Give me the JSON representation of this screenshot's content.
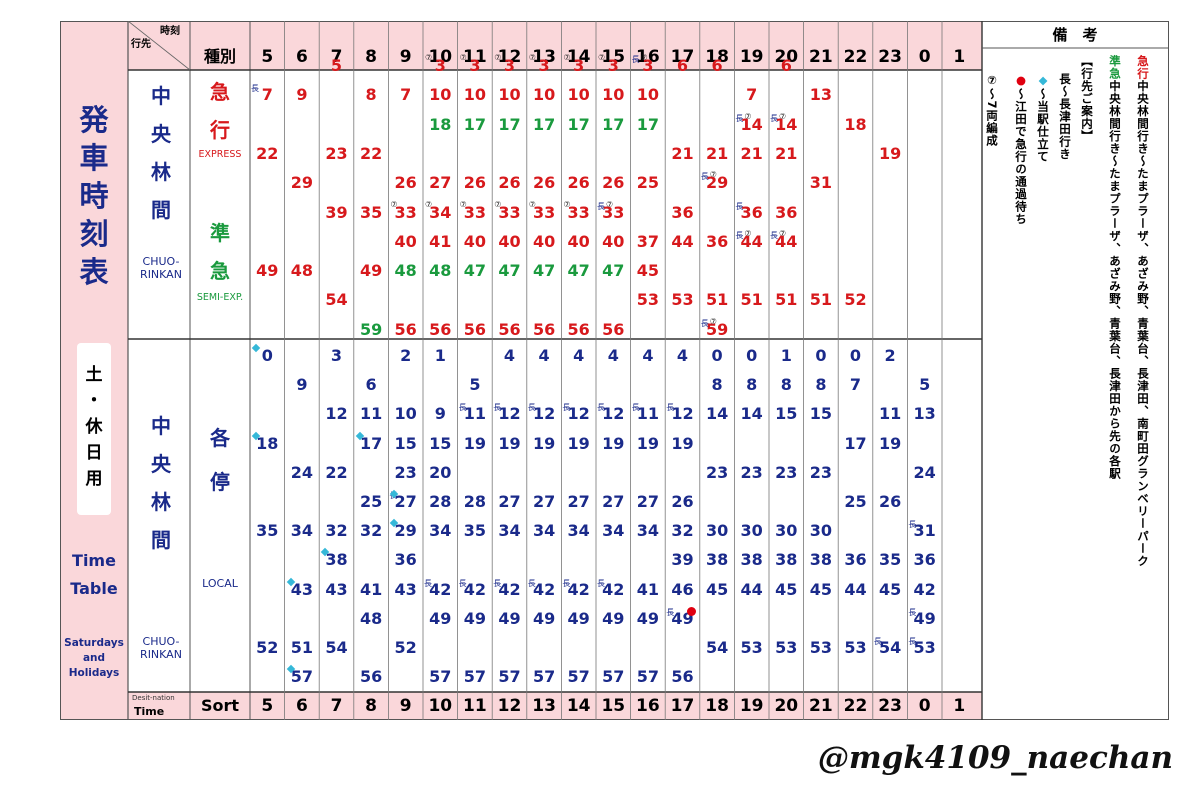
{
  "title_lines": [
    "発",
    "車",
    "時",
    "刻",
    "表"
  ],
  "day_type_lines": [
    "土",
    "・",
    "休",
    "日",
    "用"
  ],
  "title_en_lines": [
    "Time",
    "Table"
  ],
  "day_type_en_lines": [
    "Saturdays",
    "and",
    "Holidays"
  ],
  "corner": {
    "top_right": "時刻",
    "bottom_left": "行先",
    "footer_top": "Desit-nation",
    "footer_bottom": "Time"
  },
  "type_header": "種別",
  "footer_sort": "Sort",
  "remarks_header": "備　考",
  "hours": [
    "5",
    "6",
    "7",
    "8",
    "9",
    "10",
    "11",
    "12",
    "13",
    "14",
    "15",
    "16",
    "17",
    "18",
    "19",
    "20",
    "21",
    "22",
    "23",
    "0",
    "1"
  ],
  "upper": {
    "dest_lines": [
      "中",
      "央",
      "林",
      "間"
    ],
    "dest_en_lines": [
      "CHUO-",
      "RINKAN"
    ],
    "express_lines": [
      "急",
      "行"
    ],
    "express_en": "EXPRESS",
    "semi_lines": [
      "準",
      "急"
    ],
    "semi_en": "SEMI-EXP."
  },
  "lower": {
    "dest_lines": [
      "中",
      "央",
      "林",
      "間"
    ],
    "dest_en_lines": [
      "CHUO-",
      "RINKAN"
    ],
    "local_lines": [
      "各",
      "停"
    ],
    "local_en": "LOCAL"
  },
  "upper_times": [
    [
      {
        "m": "7",
        "c": "red",
        "r": 1,
        "long": true
      },
      {
        "m": "22",
        "c": "red",
        "r": 3
      },
      {
        "m": "49",
        "c": "red",
        "r": 7
      }
    ],
    [
      {
        "m": "9",
        "c": "red",
        "r": 1
      },
      {
        "m": "29",
        "c": "red",
        "r": 4
      },
      {
        "m": "48",
        "c": "red",
        "r": 7
      }
    ],
    [
      {
        "m": "5",
        "c": "red",
        "r": 0
      },
      {
        "m": "23",
        "c": "red",
        "r": 3
      },
      {
        "m": "39",
        "c": "red",
        "r": 5
      },
      {
        "m": "54",
        "c": "red",
        "r": 8
      }
    ],
    [
      {
        "m": "8",
        "c": "red",
        "r": 1
      },
      {
        "m": "22",
        "c": "red",
        "r": 3
      },
      {
        "m": "35",
        "c": "red",
        "r": 5
      },
      {
        "m": "49",
        "c": "red",
        "r": 7
      },
      {
        "m": "59",
        "c": "green",
        "r": 9
      }
    ],
    [
      {
        "m": "7",
        "c": "red",
        "r": 1
      },
      {
        "m": "26",
        "c": "red",
        "r": 4
      },
      {
        "m": "33",
        "c": "red",
        "r": 5,
        "seven": true
      },
      {
        "m": "40",
        "c": "red",
        "r": 6
      },
      {
        "m": "48",
        "c": "green",
        "r": 7
      },
      {
        "m": "56",
        "c": "red",
        "r": 9
      }
    ],
    [
      {
        "m": "3",
        "c": "red",
        "r": 0,
        "seven": true
      },
      {
        "m": "10",
        "c": "red",
        "r": 1
      },
      {
        "m": "18",
        "c": "green",
        "r": 2
      },
      {
        "m": "27",
        "c": "red",
        "r": 4
      },
      {
        "m": "34",
        "c": "red",
        "r": 5,
        "seven": true
      },
      {
        "m": "41",
        "c": "red",
        "r": 6
      },
      {
        "m": "48",
        "c": "green",
        "r": 7
      },
      {
        "m": "56",
        "c": "red",
        "r": 9
      }
    ],
    [
      {
        "m": "3",
        "c": "red",
        "r": 0,
        "seven": true
      },
      {
        "m": "10",
        "c": "red",
        "r": 1
      },
      {
        "m": "17",
        "c": "green",
        "r": 2
      },
      {
        "m": "26",
        "c": "red",
        "r": 4
      },
      {
        "m": "33",
        "c": "red",
        "r": 5,
        "seven": true
      },
      {
        "m": "40",
        "c": "red",
        "r": 6
      },
      {
        "m": "47",
        "c": "green",
        "r": 7
      },
      {
        "m": "56",
        "c": "red",
        "r": 9
      }
    ],
    [
      {
        "m": "3",
        "c": "red",
        "r": 0,
        "seven": true
      },
      {
        "m": "10",
        "c": "red",
        "r": 1
      },
      {
        "m": "17",
        "c": "green",
        "r": 2
      },
      {
        "m": "26",
        "c": "red",
        "r": 4
      },
      {
        "m": "33",
        "c": "red",
        "r": 5,
        "seven": true
      },
      {
        "m": "40",
        "c": "red",
        "r": 6
      },
      {
        "m": "47",
        "c": "green",
        "r": 7
      },
      {
        "m": "56",
        "c": "red",
        "r": 9
      }
    ],
    [
      {
        "m": "3",
        "c": "red",
        "r": 0,
        "seven": true
      },
      {
        "m": "10",
        "c": "red",
        "r": 1
      },
      {
        "m": "17",
        "c": "green",
        "r": 2
      },
      {
        "m": "26",
        "c": "red",
        "r": 4
      },
      {
        "m": "33",
        "c": "red",
        "r": 5,
        "seven": true
      },
      {
        "m": "40",
        "c": "red",
        "r": 6
      },
      {
        "m": "47",
        "c": "green",
        "r": 7
      },
      {
        "m": "56",
        "c": "red",
        "r": 9
      }
    ],
    [
      {
        "m": "3",
        "c": "red",
        "r": 0,
        "seven": true
      },
      {
        "m": "10",
        "c": "red",
        "r": 1
      },
      {
        "m": "17",
        "c": "green",
        "r": 2
      },
      {
        "m": "26",
        "c": "red",
        "r": 4
      },
      {
        "m": "33",
        "c": "red",
        "r": 5,
        "seven": true
      },
      {
        "m": "40",
        "c": "red",
        "r": 6
      },
      {
        "m": "47",
        "c": "green",
        "r": 7
      },
      {
        "m": "56",
        "c": "red",
        "r": 9
      }
    ],
    [
      {
        "m": "3",
        "c": "red",
        "r": 0,
        "seven": true
      },
      {
        "m": "10",
        "c": "red",
        "r": 1
      },
      {
        "m": "17",
        "c": "green",
        "r": 2
      },
      {
        "m": "26",
        "c": "red",
        "r": 4
      },
      {
        "m": "33",
        "c": "red",
        "r": 5,
        "long": true,
        "seven": true
      },
      {
        "m": "40",
        "c": "red",
        "r": 6
      },
      {
        "m": "47",
        "c": "green",
        "r": 7
      },
      {
        "m": "56",
        "c": "red",
        "r": 9
      }
    ],
    [
      {
        "m": "3",
        "c": "red",
        "r": 0,
        "long": true,
        "seven": true
      },
      {
        "m": "10",
        "c": "red",
        "r": 1
      },
      {
        "m": "17",
        "c": "green",
        "r": 2
      },
      {
        "m": "25",
        "c": "red",
        "r": 4
      },
      {
        "m": "37",
        "c": "red",
        "r": 6
      },
      {
        "m": "45",
        "c": "red",
        "r": 7
      },
      {
        "m": "53",
        "c": "red",
        "r": 8
      }
    ],
    [
      {
        "m": "6",
        "c": "red",
        "r": 0
      },
      {
        "m": "21",
        "c": "red",
        "r": 3
      },
      {
        "m": "36",
        "c": "red",
        "r": 5
      },
      {
        "m": "44",
        "c": "red",
        "r": 6
      },
      {
        "m": "53",
        "c": "red",
        "r": 8
      }
    ],
    [
      {
        "m": "6",
        "c": "red",
        "r": 0
      },
      {
        "m": "21",
        "c": "red",
        "r": 3
      },
      {
        "m": "29",
        "c": "red",
        "r": 4,
        "long": true,
        "seven": true
      },
      {
        "m": "36",
        "c": "red",
        "r": 6
      },
      {
        "m": "51",
        "c": "red",
        "r": 8
      },
      {
        "m": "59",
        "c": "red",
        "r": 9,
        "long": true,
        "seven": true
      }
    ],
    [
      {
        "m": "7",
        "c": "red",
        "r": 1
      },
      {
        "m": "14",
        "c": "red",
        "r": 2,
        "long": true,
        "seven": true
      },
      {
        "m": "21",
        "c": "red",
        "r": 3
      },
      {
        "m": "36",
        "c": "red",
        "r": 5,
        "long": true
      },
      {
        "m": "44",
        "c": "red",
        "r": 6,
        "long": true,
        "seven": true
      },
      {
        "m": "51",
        "c": "red",
        "r": 8
      }
    ],
    [
      {
        "m": "6",
        "c": "red",
        "r": 0
      },
      {
        "m": "14",
        "c": "red",
        "r": 2,
        "long": true,
        "seven": true
      },
      {
        "m": "21",
        "c": "red",
        "r": 3
      },
      {
        "m": "36",
        "c": "red",
        "r": 5
      },
      {
        "m": "44",
        "c": "red",
        "r": 6,
        "long": true,
        "seven": true
      },
      {
        "m": "51",
        "c": "red",
        "r": 8
      }
    ],
    [
      {
        "m": "13",
        "c": "red",
        "r": 1
      },
      {
        "m": "31",
        "c": "red",
        "r": 4
      },
      {
        "m": "51",
        "c": "red",
        "r": 8
      }
    ],
    [
      {
        "m": "18",
        "c": "red",
        "r": 2
      },
      {
        "m": "52",
        "c": "red",
        "r": 8
      }
    ],
    [
      {
        "m": "19",
        "c": "red",
        "r": 3
      }
    ],
    [],
    []
  ],
  "lower_times": [
    [
      {
        "m": "0",
        "r": 0,
        "dia": true
      },
      {
        "m": "18",
        "r": 3,
        "dia": true
      },
      {
        "m": "35",
        "r": 6
      },
      {
        "m": "52",
        "r": 10
      }
    ],
    [
      {
        "m": "9",
        "r": 1
      },
      {
        "m": "24",
        "r": 4
      },
      {
        "m": "34",
        "r": 6
      },
      {
        "m": "43",
        "r": 8,
        "dia": true
      },
      {
        "m": "51",
        "r": 10
      },
      {
        "m": "57",
        "r": 11,
        "dia": true
      }
    ],
    [
      {
        "m": "3",
        "r": 0
      },
      {
        "m": "12",
        "r": 2
      },
      {
        "m": "22",
        "r": 4
      },
      {
        "m": "32",
        "r": 6
      },
      {
        "m": "38",
        "r": 7,
        "dia": true
      },
      {
        "m": "43",
        "r": 8
      },
      {
        "m": "54",
        "r": 10
      }
    ],
    [
      {
        "m": "6",
        "r": 1
      },
      {
        "m": "11",
        "r": 2
      },
      {
        "m": "17",
        "r": 3,
        "dia": true
      },
      {
        "m": "25",
        "r": 5
      },
      {
        "m": "32",
        "r": 6
      },
      {
        "m": "41",
        "r": 8
      },
      {
        "m": "48",
        "r": 9
      },
      {
        "m": "56",
        "r": 11
      }
    ],
    [
      {
        "m": "2",
        "r": 0
      },
      {
        "m": "10",
        "r": 2
      },
      {
        "m": "15",
        "r": 3
      },
      {
        "m": "23",
        "r": 4
      },
      {
        "m": "27",
        "r": 5,
        "long": true,
        "dia": true
      },
      {
        "m": "29",
        "r": 6,
        "dia": true
      },
      {
        "m": "36",
        "r": 7
      },
      {
        "m": "43",
        "r": 8
      },
      {
        "m": "52",
        "r": 10
      }
    ],
    [
      {
        "m": "1",
        "r": 0
      },
      {
        "m": "9",
        "r": 2
      },
      {
        "m": "15",
        "r": 3
      },
      {
        "m": "20",
        "r": 4
      },
      {
        "m": "28",
        "r": 5
      },
      {
        "m": "34",
        "r": 6
      },
      {
        "m": "42",
        "r": 8,
        "long": true
      },
      {
        "m": "49",
        "r": 9
      },
      {
        "m": "57",
        "r": 11
      }
    ],
    [
      {
        "m": "5",
        "r": 1
      },
      {
        "m": "11",
        "r": 2,
        "long": true
      },
      {
        "m": "19",
        "r": 3
      },
      {
        "m": "28",
        "r": 5
      },
      {
        "m": "35",
        "r": 6
      },
      {
        "m": "42",
        "r": 8,
        "long": true
      },
      {
        "m": "49",
        "r": 9
      },
      {
        "m": "57",
        "r": 11
      }
    ],
    [
      {
        "m": "4",
        "r": 0
      },
      {
        "m": "12",
        "r": 2,
        "long": true
      },
      {
        "m": "19",
        "r": 3
      },
      {
        "m": "27",
        "r": 5
      },
      {
        "m": "34",
        "r": 6
      },
      {
        "m": "42",
        "r": 8,
        "long": true
      },
      {
        "m": "49",
        "r": 9
      },
      {
        "m": "57",
        "r": 11
      }
    ],
    [
      {
        "m": "4",
        "r": 0
      },
      {
        "m": "12",
        "r": 2,
        "long": true
      },
      {
        "m": "19",
        "r": 3
      },
      {
        "m": "27",
        "r": 5
      },
      {
        "m": "34",
        "r": 6
      },
      {
        "m": "42",
        "r": 8,
        "long": true
      },
      {
        "m": "49",
        "r": 9
      },
      {
        "m": "57",
        "r": 11
      }
    ],
    [
      {
        "m": "4",
        "r": 0
      },
      {
        "m": "12",
        "r": 2,
        "long": true
      },
      {
        "m": "19",
        "r": 3
      },
      {
        "m": "27",
        "r": 5
      },
      {
        "m": "34",
        "r": 6
      },
      {
        "m": "42",
        "r": 8,
        "long": true
      },
      {
        "m": "49",
        "r": 9
      },
      {
        "m": "57",
        "r": 11
      }
    ],
    [
      {
        "m": "4",
        "r": 0
      },
      {
        "m": "12",
        "r": 2,
        "long": true
      },
      {
        "m": "19",
        "r": 3
      },
      {
        "m": "27",
        "r": 5
      },
      {
        "m": "34",
        "r": 6
      },
      {
        "m": "42",
        "r": 8,
        "long": true
      },
      {
        "m": "49",
        "r": 9
      },
      {
        "m": "57",
        "r": 11
      }
    ],
    [
      {
        "m": "4",
        "r": 0
      },
      {
        "m": "11",
        "r": 2,
        "long": true
      },
      {
        "m": "19",
        "r": 3
      },
      {
        "m": "27",
        "r": 5
      },
      {
        "m": "34",
        "r": 6
      },
      {
        "m": "41",
        "r": 8
      },
      {
        "m": "49",
        "r": 9
      },
      {
        "m": "57",
        "r": 11
      }
    ],
    [
      {
        "m": "4",
        "r": 0
      },
      {
        "m": "12",
        "r": 2,
        "long": true
      },
      {
        "m": "19",
        "r": 3
      },
      {
        "m": "26",
        "r": 5
      },
      {
        "m": "32",
        "r": 6
      },
      {
        "m": "39",
        "r": 7
      },
      {
        "m": "46",
        "r": 8
      },
      {
        "m": "49",
        "r": 9,
        "long": true,
        "dot": true
      },
      {
        "m": "56",
        "r": 11
      }
    ],
    [
      {
        "m": "0",
        "r": 0
      },
      {
        "m": "8",
        "r": 1
      },
      {
        "m": "14",
        "r": 2
      },
      {
        "m": "23",
        "r": 4
      },
      {
        "m": "30",
        "r": 6
      },
      {
        "m": "38",
        "r": 7
      },
      {
        "m": "45",
        "r": 8
      },
      {
        "m": "54",
        "r": 10
      }
    ],
    [
      {
        "m": "0",
        "r": 0
      },
      {
        "m": "8",
        "r": 1
      },
      {
        "m": "14",
        "r": 2
      },
      {
        "m": "23",
        "r": 4
      },
      {
        "m": "30",
        "r": 6
      },
      {
        "m": "38",
        "r": 7
      },
      {
        "m": "44",
        "r": 8
      },
      {
        "m": "53",
        "r": 10
      }
    ],
    [
      {
        "m": "1",
        "r": 0
      },
      {
        "m": "8",
        "r": 1
      },
      {
        "m": "15",
        "r": 2
      },
      {
        "m": "23",
        "r": 4
      },
      {
        "m": "30",
        "r": 6
      },
      {
        "m": "38",
        "r": 7
      },
      {
        "m": "45",
        "r": 8
      },
      {
        "m": "53",
        "r": 10
      }
    ],
    [
      {
        "m": "0",
        "r": 0
      },
      {
        "m": "8",
        "r": 1
      },
      {
        "m": "15",
        "r": 2
      },
      {
        "m": "23",
        "r": 4
      },
      {
        "m": "30",
        "r": 6
      },
      {
        "m": "38",
        "r": 7
      },
      {
        "m": "45",
        "r": 8
      },
      {
        "m": "53",
        "r": 10
      }
    ],
    [
      {
        "m": "0",
        "r": 0
      },
      {
        "m": "7",
        "r": 1
      },
      {
        "m": "17",
        "r": 3
      },
      {
        "m": "25",
        "r": 5
      },
      {
        "m": "36",
        "r": 7
      },
      {
        "m": "44",
        "r": 8
      },
      {
        "m": "53",
        "r": 10
      }
    ],
    [
      {
        "m": "2",
        "r": 0
      },
      {
        "m": "11",
        "r": 2
      },
      {
        "m": "19",
        "r": 3
      },
      {
        "m": "26",
        "r": 5
      },
      {
        "m": "35",
        "r": 7
      },
      {
        "m": "45",
        "r": 8
      },
      {
        "m": "54",
        "r": 10,
        "long": true
      }
    ],
    [
      {
        "m": "5",
        "r": 1
      },
      {
        "m": "13",
        "r": 2
      },
      {
        "m": "24",
        "r": 4
      },
      {
        "m": "31",
        "r": 6,
        "long": true
      },
      {
        "m": "36",
        "r": 7
      },
      {
        "m": "42",
        "r": 8
      },
      {
        "m": "49",
        "r": 9,
        "long": true
      },
      {
        "m": "53",
        "r": 10,
        "long": true
      }
    ],
    []
  ],
  "marks": {
    "long": "長",
    "seven": "⑦"
  },
  "remarks": [
    {
      "text": "急行中央林間行き～たまプラーザ、あざみ野、青葉台、長津田、南町田グランベリーパーク",
      "lead": "急行",
      "lead_color": "#d7191c"
    },
    {
      "text": "準急中央林間行き～たまプラーザ、あざみ野、青葉台、長津田から先の各駅",
      "lead": "準急",
      "lead_color": "#1a9a3e"
    },
    {
      "text": "【行先ご案内】",
      "lead": "",
      "lead_color": "#000000"
    },
    {
      "text": "長～長津田行き",
      "lead": "",
      "lead_color": "#000000"
    },
    {
      "text": "◆～当駅仕立て",
      "lead": "◆",
      "lead_color": "#35b8d8"
    },
    {
      "text": "●～江田で急行の通過待ち",
      "lead": "●",
      "lead_color": "#e00010"
    },
    {
      "text": "⑦～7両編成",
      "lead": "",
      "lead_color": "#000000"
    }
  ],
  "credit": "@mgk4109_naechan",
  "colors": {
    "pink": "#fad7da",
    "navy": "#1a2a8a",
    "red": "#d7191c",
    "green": "#1a9a3e",
    "diamond": "#35b8d8"
  }
}
